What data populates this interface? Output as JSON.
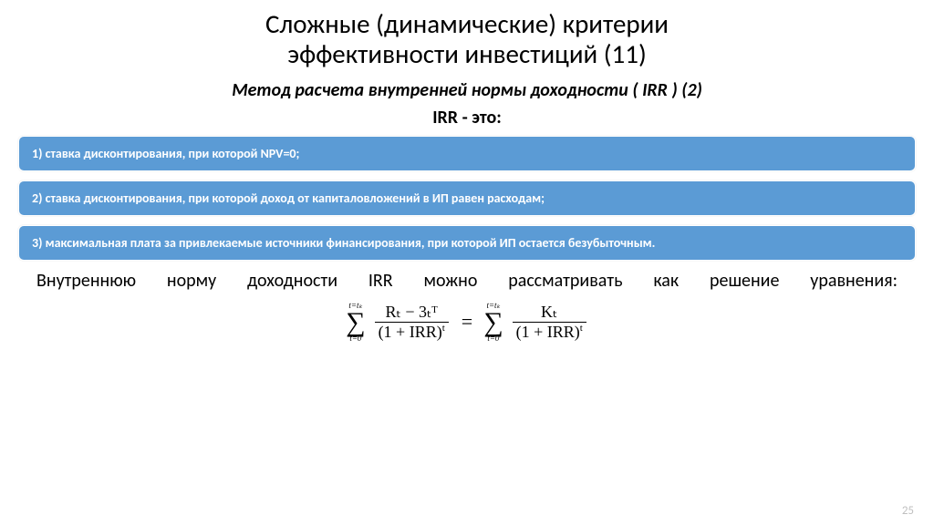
{
  "title_line1": "Сложные (динамические) критерии",
  "title_line2": "эффективности инвестиций (11)",
  "subtitle": "Метод расчета внутренней нормы доходности ( IRR ) (2)",
  "irr_label": "IRR - это:",
  "boxes": [
    "1) ставка дисконтирования, при которой NPV=0;",
    "2) ставка дисконтирования, при которой доход от капиталовложений в ИП равен расходам;",
    "3) максимальная плата за привлекаемые источники финансирования, при которой ИП остается безубыточным."
  ],
  "paragraph": "Внутреннюю норму доходности IRR можно рассматривать как решение уравнения:",
  "formula": {
    "left_top": "t=tₖ",
    "left_bottom": "t=0",
    "left_num": "Rₜ − 3ₜᵀ",
    "left_den": "(1 + IRR)",
    "left_den_exp": "t",
    "eq": "=",
    "right_top": "t=tₖ",
    "right_bottom": "t=0",
    "right_num": "Kₜ",
    "right_den": "(1 + IRR)",
    "right_den_exp": "t"
  },
  "page_number": "25",
  "colors": {
    "box_bg": "#5b9bd5",
    "box_text": "#ffffff",
    "page_num": "#bfbfbf"
  }
}
